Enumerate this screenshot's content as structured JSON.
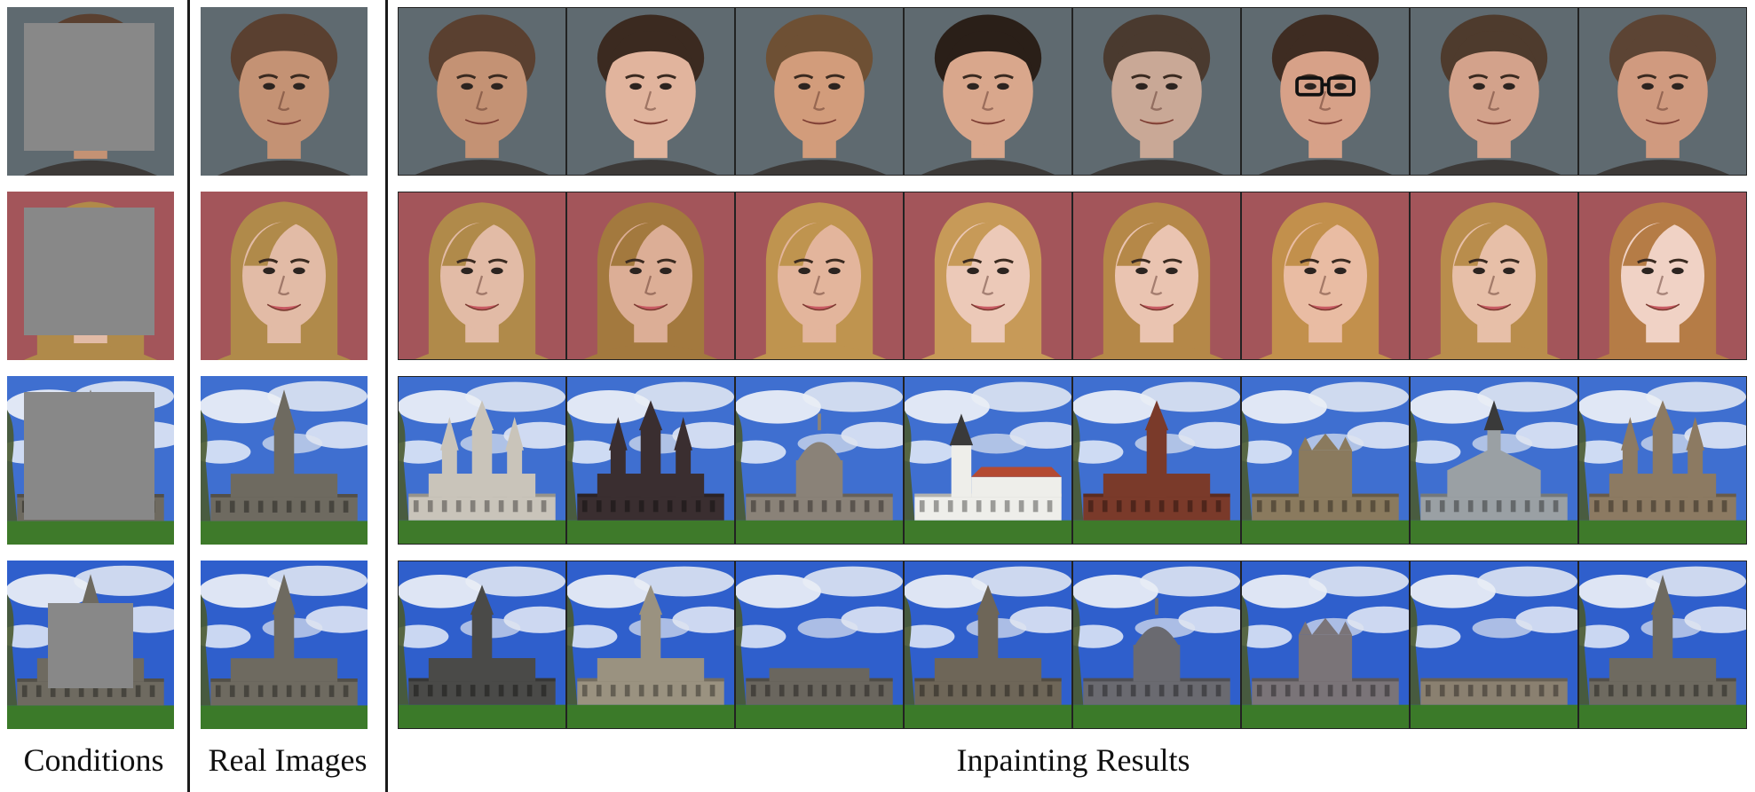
{
  "figure": {
    "column_labels": {
      "conditions": "Conditions",
      "real_images": "Real Images",
      "inpainting_results": "Inpainting Results"
    },
    "rows": [
      {
        "scene": "face",
        "gender": "male",
        "mask": "large-square",
        "bg": "#5f6a70",
        "skin": [
          "#c49274",
          "#e1b49d",
          "#d29c7b",
          "#d9a78c",
          "#c9a896",
          "#d7a188",
          "#d3a28b",
          "#d09a7f"
        ],
        "hair": [
          "#5a4030",
          "#3b2a20",
          "#6e5034",
          "#2a1f18",
          "#4a3a2f",
          "#3e2c22",
          "#4e3b2d",
          "#5c4434"
        ],
        "glasses": [
          false,
          false,
          false,
          false,
          false,
          true,
          false,
          false
        ]
      },
      {
        "scene": "face",
        "gender": "female",
        "mask": "large-square",
        "bg": "#a3555a",
        "skin": [
          "#e2bba6",
          "#dcae96",
          "#e3b59c",
          "#ecc9b8",
          "#eac4b1",
          "#e9bca3",
          "#e7bfa8",
          "#f0d2c5"
        ],
        "hair": [
          "#b08a4a",
          "#a3793e",
          "#bf944f",
          "#c79a58",
          "#b58848",
          "#c2904c",
          "#b98d4c",
          "#b57c46"
        ],
        "glasses": [
          false,
          false,
          false,
          false,
          false,
          false,
          false,
          false
        ]
      },
      {
        "scene": "cathedral",
        "mask": "large-square",
        "sky": "#3f6fd0",
        "grass": "#3e7a2a",
        "variants": [
          "gothic-white",
          "dark-ornate",
          "domed",
          "white-church",
          "brick-tower",
          "stone-block",
          "wooden-chapel",
          "gothic-twin"
        ]
      },
      {
        "scene": "cathedral",
        "mask": "small-square",
        "sky": "#2f5fcc",
        "grass": "#3b7a29",
        "variants": [
          "dark-spire",
          "light-spire",
          "no-spire",
          "gothic-spire",
          "dome",
          "ornate-block",
          "low-spire",
          "tall-spire"
        ]
      }
    ]
  }
}
